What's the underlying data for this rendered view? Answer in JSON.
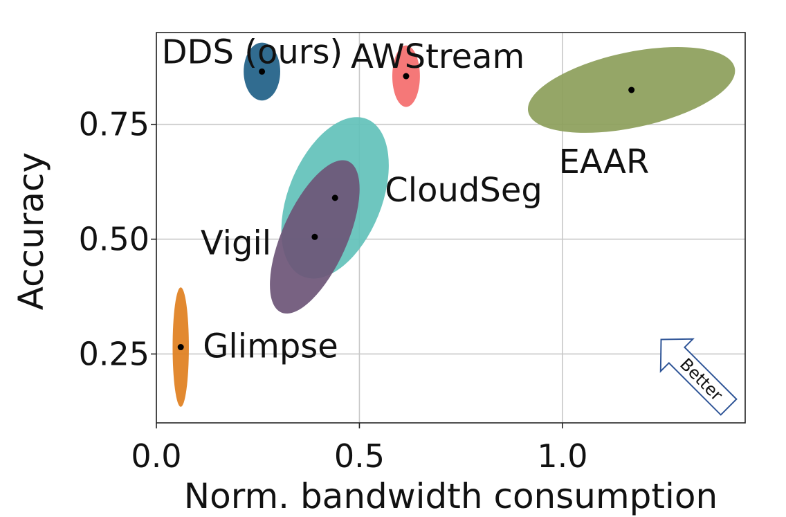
{
  "chart_data": {
    "type": "scatter",
    "xlabel": "Norm. bandwidth consumption",
    "ylabel": "Accuracy",
    "xlim": [
      0.0,
      1.45
    ],
    "ylim": [
      0.1,
      0.95
    ],
    "xticks": [
      0.0,
      0.5,
      1.0
    ],
    "xtick_labels": [
      "0.0",
      "0.5",
      "1.0"
    ],
    "yticks": [
      0.25,
      0.5,
      0.75
    ],
    "ytick_labels": [
      "0.25",
      "0.50",
      "0.75"
    ],
    "grid": true,
    "series": [
      {
        "name": "DDS (ours)",
        "x": 0.26,
        "y": 0.865,
        "x_spread": 0.045,
        "y_spread": 0.063,
        "color": "#1f5f87"
      },
      {
        "name": "AWStream",
        "x": 0.615,
        "y": 0.855,
        "x_spread": 0.034,
        "y_spread": 0.067,
        "color": "#f46c6c"
      },
      {
        "name": "EAAR",
        "x": 1.17,
        "y": 0.825,
        "x_spread": 0.26,
        "y_spread": 0.082,
        "color": "#8c9e5a"
      },
      {
        "name": "CloudSeg",
        "x": 0.44,
        "y": 0.59,
        "x_spread": 0.115,
        "y_spread": 0.185,
        "color": "#62c1ba"
      },
      {
        "name": "Vigil",
        "x": 0.39,
        "y": 0.505,
        "x_spread": 0.08,
        "y_spread": 0.18,
        "color": "#6d5577"
      },
      {
        "name": "Glimpse",
        "x": 0.06,
        "y": 0.265,
        "x_spread": 0.02,
        "y_spread": 0.13,
        "color": "#e07f1e"
      }
    ],
    "annotations": [
      {
        "text": "Better",
        "direction": "upper-left",
        "position": "bottom-right"
      }
    ]
  }
}
